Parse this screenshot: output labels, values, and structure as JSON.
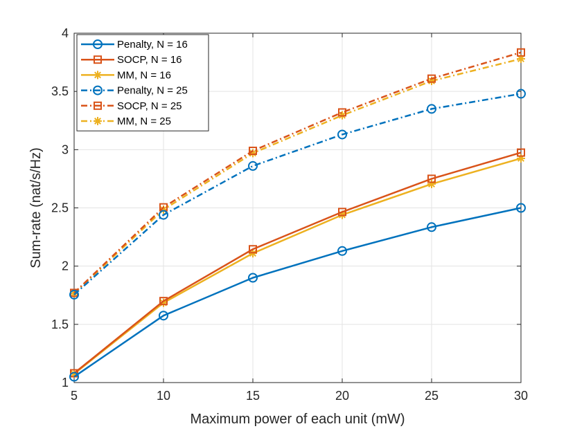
{
  "chart_data": {
    "type": "line",
    "title": "",
    "xlabel": "Maximum power of each unit (mW)",
    "ylabel": "Sum-rate (nat/s/Hz)",
    "xlim": [
      5,
      30
    ],
    "ylim": [
      1,
      4
    ],
    "xticks": [
      5,
      10,
      15,
      20,
      25,
      30
    ],
    "yticks": [
      1,
      1.5,
      2,
      2.5,
      3,
      3.5,
      4
    ],
    "xtick_labels": [
      "5",
      "10",
      "15",
      "20",
      "25",
      "30"
    ],
    "ytick_labels": [
      "1",
      "1.5",
      "2",
      "2.5",
      "3",
      "3.5",
      "4"
    ],
    "grid": true,
    "legend_position": "top-left",
    "x": [
      5,
      10,
      15,
      20,
      25,
      30
    ],
    "series": [
      {
        "name": "Penalty, N = 16",
        "values": [
          1.05,
          1.575,
          1.9,
          2.13,
          2.335,
          2.5
        ],
        "color": "#0072BD",
        "style": "solid",
        "marker": "circle"
      },
      {
        "name": "SOCP, N = 16",
        "values": [
          1.08,
          1.7,
          2.145,
          2.465,
          2.75,
          2.975
        ],
        "color": "#D95319",
        "style": "solid",
        "marker": "square"
      },
      {
        "name": "MM, N = 16",
        "values": [
          1.075,
          1.685,
          2.11,
          2.44,
          2.705,
          2.925
        ],
        "color": "#EDB120",
        "style": "solid",
        "marker": "asterisk"
      },
      {
        "name": "Penalty, N = 25",
        "values": [
          1.755,
          2.44,
          2.86,
          3.13,
          3.35,
          3.48
        ],
        "color": "#0072BD",
        "style": "dashdot",
        "marker": "circle"
      },
      {
        "name": "SOCP, N = 25",
        "values": [
          1.77,
          2.505,
          2.99,
          3.32,
          3.61,
          3.835
        ],
        "color": "#D95319",
        "style": "dashdot",
        "marker": "square"
      },
      {
        "name": "MM, N = 25",
        "values": [
          1.765,
          2.485,
          2.97,
          3.295,
          3.59,
          3.78
        ],
        "color": "#EDB120",
        "style": "dashdot",
        "marker": "asterisk"
      }
    ]
  }
}
